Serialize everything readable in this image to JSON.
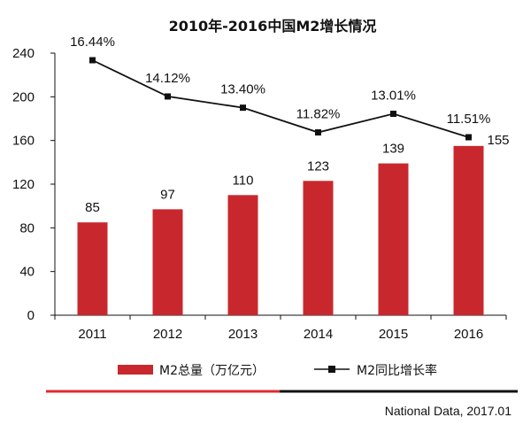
{
  "chart_data": {
    "type": "bar",
    "title": "2010年-2016中国M2增长情况",
    "categories": [
      "2011",
      "2012",
      "2013",
      "2014",
      "2015",
      "2016"
    ],
    "series": [
      {
        "name": "M2总量（万亿元）",
        "type": "bar",
        "axis": "left",
        "values": [
          85,
          97,
          110,
          123,
          139,
          155
        ],
        "labels": [
          "85",
          "97",
          "110",
          "123",
          "139",
          "155"
        ],
        "color": "#c8282d"
      },
      {
        "name": "M2同比增长率",
        "type": "line",
        "axis": "right",
        "values": [
          16.44,
          14.12,
          13.4,
          11.82,
          13.01,
          11.51
        ],
        "labels": [
          "16.44%",
          "14.12%",
          "13.40%",
          "11.82%",
          "13.01%",
          "11.51%"
        ],
        "color": "#111111"
      }
    ],
    "yticks": [
      "240",
      "200",
      "160",
      "120",
      "80",
      "40",
      "0"
    ],
    "ylim": [
      0,
      240
    ],
    "xlabel": "",
    "ylabel": "",
    "grid": false,
    "legend": "bottom"
  },
  "source": "National Data, 2017.01",
  "colors": {
    "bar": "#c8282d",
    "line": "#111111",
    "divider_left": "#e02a2f",
    "divider_right": "#111111"
  }
}
